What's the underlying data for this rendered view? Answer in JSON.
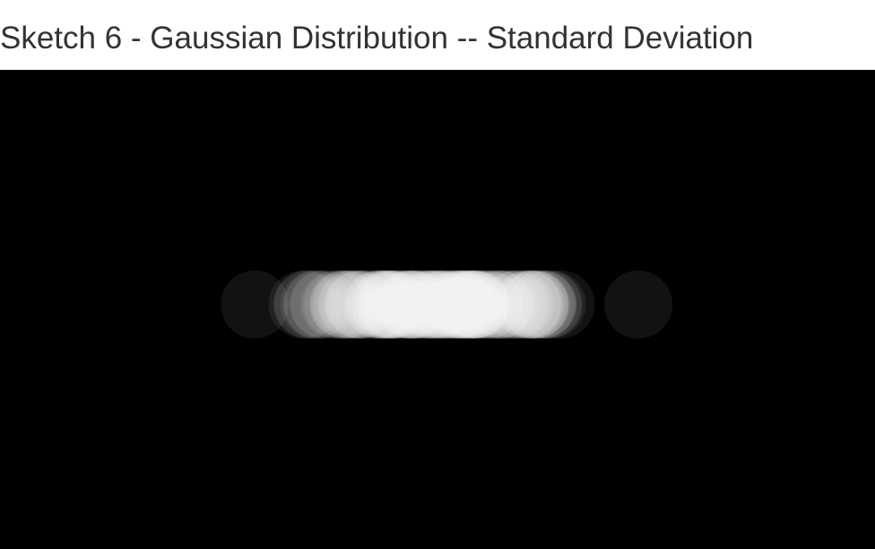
{
  "page": {
    "title": "Sketch 6 - Gaussian Distribution -- Standard Deviation"
  },
  "sketch": {
    "background_color": "#000000",
    "dot_color": "#ffffff",
    "dot_opacity": 0.07
  }
}
